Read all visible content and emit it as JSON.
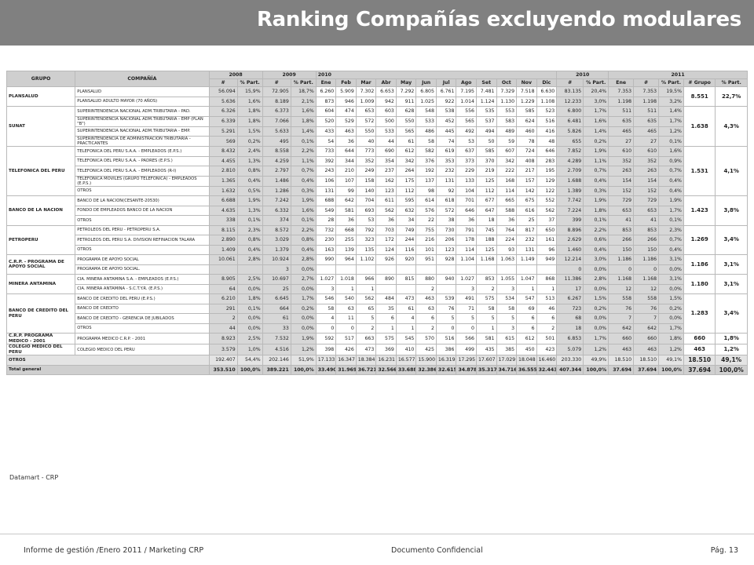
{
  "title": "Ranking Compañías excluyendo modulares",
  "table": {
    "header1": [
      "GRUPO",
      "COMPAÑÍA",
      "2008",
      "2009",
      "2010",
      "2010",
      "2011"
    ],
    "header2": [
      "#",
      "% Part.",
      "#",
      "% Part.",
      "Ene",
      "Feb",
      "Mar",
      "Abr",
      "May",
      "Jun",
      "Jul",
      "Ago",
      "Set",
      "Oct",
      "Nov",
      "Dic",
      "#",
      "% Part.",
      "Ene",
      "#",
      "% Part.",
      "# Grupo",
      "% Part."
    ],
    "groups": [
      {
        "name": "PLANSALUD",
        "grupo": "8.551",
        "part": "22,7%",
        "rows": [
          [
            "PLANSALUD",
            "56.094",
            "15,9%",
            "72.905",
            "18,7%",
            "6.260",
            "5.909",
            "7.302",
            "6.653",
            "7.292",
            "6.805",
            "6.761",
            "7.195",
            "7.481",
            "7.329",
            "7.518",
            "6.630",
            "83.135",
            "20,4%",
            "7.353",
            "7.353",
            "19,5%"
          ],
          [
            "PLANSALUD ADULTO MAYOR (70 AÑOS)",
            "5.636",
            "1,6%",
            "8.189",
            "2,1%",
            "873",
            "946",
            "1.009",
            "942",
            "911",
            "1.025",
            "922",
            "1.014",
            "1.124",
            "1.130",
            "1.229",
            "1.108",
            "12.233",
            "3,0%",
            "1.198",
            "1.198",
            "3,2%"
          ]
        ]
      },
      {
        "name": "SUNAT",
        "grupo": "1.638",
        "part": "4,3%",
        "rows": [
          [
            "SUPERINTENDENCIA NACIONAL ADM.TRIBUTARIA - PAD.",
            "6.326",
            "1,8%",
            "6.373",
            "1,6%",
            "604",
            "474",
            "653",
            "603",
            "628",
            "548",
            "538",
            "556",
            "535",
            "553",
            "585",
            "523",
            "6.800",
            "1,7%",
            "511",
            "511",
            "1,4%"
          ],
          [
            "SUPERINTENDENCIA NACIONAL ADM.TRIBUTARIA - EMP (PLAN \"B\")",
            "6.339",
            "1,8%",
            "7.066",
            "1,8%",
            "520",
            "529",
            "572",
            "500",
            "550",
            "533",
            "452",
            "565",
            "537",
            "583",
            "624",
            "516",
            "6.481",
            "1,6%",
            "635",
            "635",
            "1,7%"
          ],
          [
            "SUPERINTENDENCIA NACIONAL ADM.TRIBUTARIA - EMP.",
            "5.291",
            "1,5%",
            "5.633",
            "1,4%",
            "433",
            "463",
            "550",
            "533",
            "565",
            "486",
            "445",
            "492",
            "494",
            "489",
            "460",
            "416",
            "5.826",
            "1,4%",
            "465",
            "465",
            "1,2%"
          ],
          [
            "SUPERINTENDENCIA DE ADMINISTRACION TRIBUTARIA - PRACTICANTES",
            "569",
            "0,2%",
            "495",
            "0,1%",
            "54",
            "36",
            "40",
            "44",
            "61",
            "58",
            "74",
            "53",
            "50",
            "59",
            "78",
            "48",
            "655",
            "0,2%",
            "27",
            "27",
            "0,1%"
          ]
        ]
      },
      {
        "name": "TELEFONICA DEL PERU",
        "grupo": "1.531",
        "part": "4,1%",
        "rows": [
          [
            "TELEFONICA DEL PERU S.A.A. - EMPLEADOS (E.P.S.)",
            "8.432",
            "2,4%",
            "8.558",
            "2,2%",
            "733",
            "644",
            "773",
            "690",
            "612",
            "582",
            "619",
            "637",
            "585",
            "607",
            "724",
            "646",
            "7.852",
            "1,9%",
            "610",
            "610",
            "1,6%"
          ],
          [
            "TELEFONICA DEL PERU S.A.A. - PADRES (E.P.S.)",
            "4.455",
            "1,3%",
            "4.259",
            "1,1%",
            "392",
            "344",
            "352",
            "354",
            "342",
            "376",
            "353",
            "373",
            "370",
            "342",
            "408",
            "283",
            "4.289",
            "1,1%",
            "352",
            "352",
            "0,9%"
          ],
          [
            "TELEFONICA DEL PERU S.A.A. - EMPLEADOS (R-I)",
            "2.810",
            "0,8%",
            "2.797",
            "0,7%",
            "243",
            "210",
            "249",
            "237",
            "264",
            "192",
            "232",
            "229",
            "219",
            "222",
            "217",
            "195",
            "2.709",
            "0,7%",
            "263",
            "263",
            "0,7%"
          ],
          [
            "TELEFONICA MOVILES (GRUPO TELEFONICA) - EMPLEADOS (E.P.S.)",
            "1.365",
            "0,4%",
            "1.486",
            "0,4%",
            "106",
            "107",
            "158",
            "162",
            "175",
            "137",
            "131",
            "133",
            "125",
            "168",
            "157",
            "129",
            "1.688",
            "0,4%",
            "154",
            "154",
            "0,4%"
          ],
          [
            "OTROS",
            "1.632",
            "0,5%",
            "1.286",
            "0,3%",
            "131",
            "99",
            "140",
            "123",
            "112",
            "98",
            "92",
            "104",
            "112",
            "114",
            "142",
            "122",
            "1.389",
            "0,3%",
            "152",
            "152",
            "0,4%"
          ]
        ]
      },
      {
        "name": "BANCO DE LA NACION",
        "grupo": "1.423",
        "part": "3,8%",
        "rows": [
          [
            "BANCO DE LA NACION(CESANTE-20530)",
            "6.688",
            "1,9%",
            "7.242",
            "1,9%",
            "688",
            "642",
            "704",
            "611",
            "595",
            "614",
            "618",
            "701",
            "677",
            "665",
            "675",
            "552",
            "7.742",
            "1,9%",
            "729",
            "729",
            "1,9%"
          ],
          [
            "FONDO DE EMPLEADOS BANCO DE LA NACION",
            "4.635",
            "1,3%",
            "6.332",
            "1,6%",
            "549",
            "581",
            "693",
            "562",
            "632",
            "576",
            "572",
            "646",
            "647",
            "588",
            "616",
            "562",
            "7.224",
            "1,8%",
            "653",
            "653",
            "1,7%"
          ],
          [
            "OTROS",
            "338",
            "0,1%",
            "374",
            "0,1%",
            "28",
            "36",
            "53",
            "36",
            "34",
            "22",
            "38",
            "36",
            "18",
            "36",
            "25",
            "37",
            "399",
            "0,1%",
            "41",
            "41",
            "0,1%"
          ]
        ]
      },
      {
        "name": "PETROPERU",
        "grupo": "1.269",
        "part": "3,4%",
        "rows": [
          [
            "PETROLEOS DEL PERU - PETROPERU S.A.",
            "8.115",
            "2,3%",
            "8.572",
            "2,2%",
            "732",
            "668",
            "792",
            "703",
            "749",
            "755",
            "730",
            "791",
            "745",
            "764",
            "817",
            "650",
            "8.896",
            "2,2%",
            "853",
            "853",
            "2,3%"
          ],
          [
            "PETROLEOS DEL PERU S.A. DIVISION REFINACION TALARA",
            "2.890",
            "0,8%",
            "3.029",
            "0,8%",
            "230",
            "255",
            "323",
            "172",
            "244",
            "216",
            "206",
            "178",
            "188",
            "224",
            "232",
            "161",
            "2.629",
            "0,6%",
            "266",
            "266",
            "0,7%"
          ],
          [
            "OTROS",
            "1.409",
            "0,4%",
            "1.379",
            "0,4%",
            "163",
            "139",
            "135",
            "124",
            "116",
            "101",
            "123",
            "114",
            "125",
            "93",
            "131",
            "96",
            "1.460",
            "0,4%",
            "150",
            "150",
            "0,4%"
          ]
        ]
      },
      {
        "name": "C.R.P. - PROGRAMA DE APOYO SOCIAL",
        "grupo": "1.186",
        "part": "3,1%",
        "rows": [
          [
            "PROGRAMA DE APOYO SOCIAL",
            "10.061",
            "2,8%",
            "10.924",
            "2,8%",
            "990",
            "964",
            "1.102",
            "926",
            "920",
            "951",
            "928",
            "1.104",
            "1.168",
            "1.063",
            "1.149",
            "949",
            "12.214",
            "3,0%",
            "1.186",
            "1.186",
            "3,1%"
          ],
          [
            "PROGRAMA DE APOYO SOCIAL.",
            "",
            "",
            "3",
            "0,0%",
            "",
            "",
            "",
            "",
            "",
            "",
            "",
            "",
            "",
            "",
            "",
            "",
            "0",
            "0,0%",
            "0",
            "0",
            "0,0%"
          ]
        ]
      },
      {
        "name": "MINERA ANTAMINA",
        "grupo": "1.180",
        "part": "3,1%",
        "rows": [
          [
            "CIA. MINERA ANTAMINA S.A. - EMPLEADOS (E.P.S.)",
            "8.905",
            "2,5%",
            "10.697",
            "2,7%",
            "1.027",
            "1.018",
            "966",
            "890",
            "815",
            "880",
            "940",
            "1.027",
            "853",
            "1.055",
            "1.047",
            "868",
            "11.386",
            "2,8%",
            "1.168",
            "1.168",
            "3,1%"
          ],
          [
            "CIA. MINERA ANTAMINA - S.C.T.Y.R. (E.P.S.)",
            "64",
            "0,0%",
            "25",
            "0,0%",
            "3",
            "1",
            "1",
            "",
            "",
            "2",
            "",
            "3",
            "2",
            "3",
            "1",
            "1",
            "17",
            "0,0%",
            "12",
            "12",
            "0,0%"
          ]
        ]
      },
      {
        "name": "BANCO DE CREDITO DEL PERU",
        "grupo": "1.283",
        "part": "3,4%",
        "rows": [
          [
            "BANCO DE CREDITO DEL PERU (E.P.S.)",
            "6.210",
            "1,8%",
            "6.645",
            "1,7%",
            "546",
            "540",
            "562",
            "484",
            "473",
            "463",
            "539",
            "491",
            "575",
            "534",
            "547",
            "513",
            "6.267",
            "1,5%",
            "558",
            "558",
            "1,5%"
          ],
          [
            "BANCO DE CREDITO",
            "291",
            "0,1%",
            "664",
            "0,2%",
            "58",
            "63",
            "65",
            "35",
            "61",
            "63",
            "76",
            "71",
            "58",
            "58",
            "69",
            "46",
            "723",
            "0,2%",
            "76",
            "76",
            "0,2%"
          ],
          [
            "BANCO DE CREDITO - GERENCIA DE JUBILADOS",
            "2",
            "0,0%",
            "61",
            "0,0%",
            "4",
            "11",
            "5",
            "6",
            "4",
            "6",
            "5",
            "5",
            "5",
            "5",
            "6",
            "6",
            "68",
            "0,0%",
            "7",
            "7",
            "0,0%"
          ],
          [
            "OTROS",
            "44",
            "0,0%",
            "33",
            "0,0%",
            "0",
            "0",
            "2",
            "1",
            "1",
            "2",
            "0",
            "0",
            "1",
            "3",
            "6",
            "2",
            "18",
            "0,0%",
            "642",
            "642",
            "1,7%"
          ]
        ]
      },
      {
        "name": "C.R.P. PROGRAMA MEDICO - 2001",
        "grupo": "660",
        "part": "1,8%",
        "rows": [
          [
            "PROGRAMA MEDICO C.R.P. - 2001",
            "8.923",
            "2,5%",
            "7.532",
            "1,9%",
            "592",
            "517",
            "663",
            "575",
            "545",
            "570",
            "516",
            "566",
            "581",
            "615",
            "612",
            "501",
            "6.853",
            "1,7%",
            "660",
            "660",
            "1,8%"
          ]
        ]
      },
      {
        "name": "COLEGIO MEDICO DEL PERU",
        "grupo": "463",
        "part": "1,2%",
        "rows": [
          [
            "COLEGIO MEDICO DEL PERU",
            "3.579",
            "1,0%",
            "4.516",
            "1,2%",
            "398",
            "426",
            "473",
            "369",
            "410",
            "425",
            "386",
            "499",
            "435",
            "385",
            "450",
            "423",
            "5.079",
            "1,2%",
            "463",
            "463",
            "1,2%"
          ]
        ]
      }
    ],
    "otros": {
      "label": "OTROS",
      "values": [
        "192.407",
        "54,4%",
        "202.146",
        "51,9%",
        "17.133",
        "16.347",
        "18.384",
        "16.231",
        "16.577",
        "15.900",
        "16.319",
        "17.295",
        "17.607",
        "17.029",
        "18.048",
        "16.460",
        "203.330",
        "49,9%",
        "18.510",
        "18.510",
        "49,1%"
      ],
      "grupo": "18.510",
      "part": "49,1%"
    },
    "total": {
      "label": "Total general",
      "values": [
        "353.510",
        "100,0%",
        "389.221",
        "100,0%",
        "33.490",
        "31.969",
        "36.721",
        "32.566",
        "33.688",
        "32.386",
        "32.615",
        "34.878",
        "35.317",
        "34.716",
        "36.555",
        "32.443",
        "407.344",
        "100,0%",
        "37.694",
        "37.694",
        "100,0%"
      ],
      "grupo": "37.694",
      "part": "100,0%"
    }
  },
  "source": "Datamart - CRP",
  "footer": {
    "left": "Informe de gestión /Enero 2011 / Marketing CRP",
    "center": "Documento Confidencial",
    "right": "Pág. 13"
  }
}
